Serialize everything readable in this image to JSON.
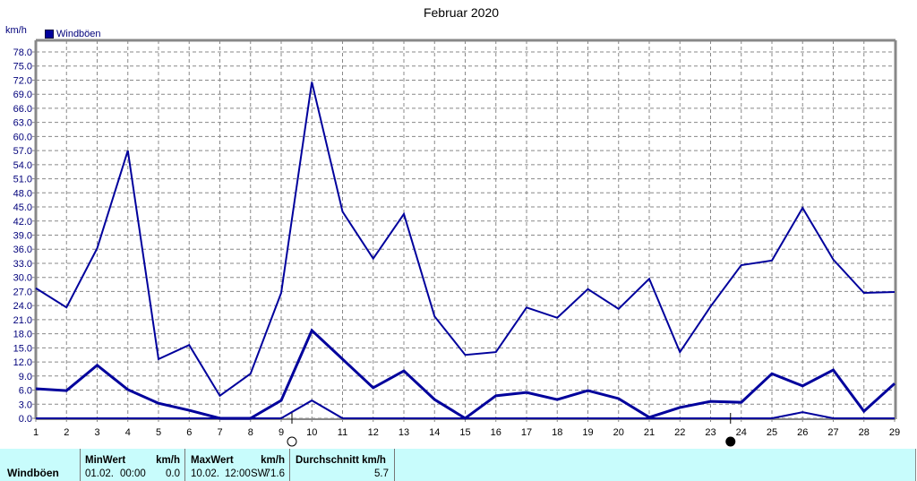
{
  "title": "Februar 2020",
  "unit_label": "km/h",
  "legend": [
    {
      "label": "Windböen",
      "color": "#00009c"
    }
  ],
  "stats_panel": {
    "series_label": "Windböen",
    "min": {
      "header": "MinWert",
      "unit": "km/h",
      "date": "01.02.",
      "time": "00:00",
      "value": "0.0"
    },
    "max": {
      "header": "MaxWert",
      "unit": "km/h",
      "date": "10.02.",
      "time": "12:00",
      "direction": "SW",
      "value": "71.6"
    },
    "avg": {
      "header": "Durchschnitt km/h",
      "value": "5.7"
    }
  },
  "markers": [
    {
      "type": "full-moon-icon",
      "x_day": 9.35
    },
    {
      "type": "new-moon-icon",
      "x_day": 23.65
    }
  ],
  "chart_data": {
    "type": "line",
    "title": "Februar 2020",
    "xlabel": "",
    "ylabel": "km/h",
    "ylim": [
      0,
      78
    ],
    "y_ticks": [
      "0.0",
      "3.0",
      "6.0",
      "9.0",
      "12.0",
      "15.0",
      "18.0",
      "21.0",
      "24.0",
      "27.0",
      "30.0",
      "33.0",
      "36.0",
      "39.0",
      "42.0",
      "45.0",
      "48.0",
      "51.0",
      "54.0",
      "57.0",
      "60.0",
      "63.0",
      "66.0",
      "69.0",
      "72.0",
      "75.0",
      "78.0"
    ],
    "grid": true,
    "legend_position": "top-left",
    "x": [
      1,
      2,
      3,
      4,
      5,
      6,
      7,
      8,
      9,
      10,
      11,
      12,
      13,
      14,
      15,
      16,
      17,
      18,
      19,
      20,
      21,
      22,
      23,
      24,
      25,
      26,
      27,
      28,
      29
    ],
    "series": [
      {
        "name": "Windböen (Max)",
        "width": 2,
        "values": [
          27.7,
          23.6,
          36.2,
          57.0,
          12.6,
          15.6,
          4.8,
          9.5,
          26.7,
          71.6,
          44.0,
          34.0,
          43.5,
          21.7,
          13.5,
          14.1,
          23.6,
          21.4,
          27.5,
          23.3,
          29.7,
          14.1,
          23.8,
          32.6,
          33.6,
          44.8,
          33.8,
          26.7,
          26.9
        ]
      },
      {
        "name": "Windböen (Mittel)",
        "width": 3,
        "values": [
          6.3,
          5.9,
          11.3,
          6.1,
          3.2,
          1.7,
          0.0,
          0.0,
          3.8,
          18.7,
          12.6,
          6.5,
          10.1,
          4.0,
          0.0,
          4.8,
          5.5,
          4.0,
          5.9,
          4.2,
          0.2,
          2.3,
          3.6,
          3.4,
          9.5,
          6.9,
          10.3,
          1.5,
          7.4
        ]
      },
      {
        "name": "Windböen (Min)",
        "width": 2,
        "values": [
          0,
          0,
          0,
          0,
          0,
          0,
          0,
          0,
          0,
          3.8,
          0,
          0,
          0,
          0,
          0,
          0,
          0,
          0,
          0,
          0,
          0,
          0,
          0,
          0,
          0,
          1.3,
          0,
          0,
          0
        ]
      }
    ]
  }
}
